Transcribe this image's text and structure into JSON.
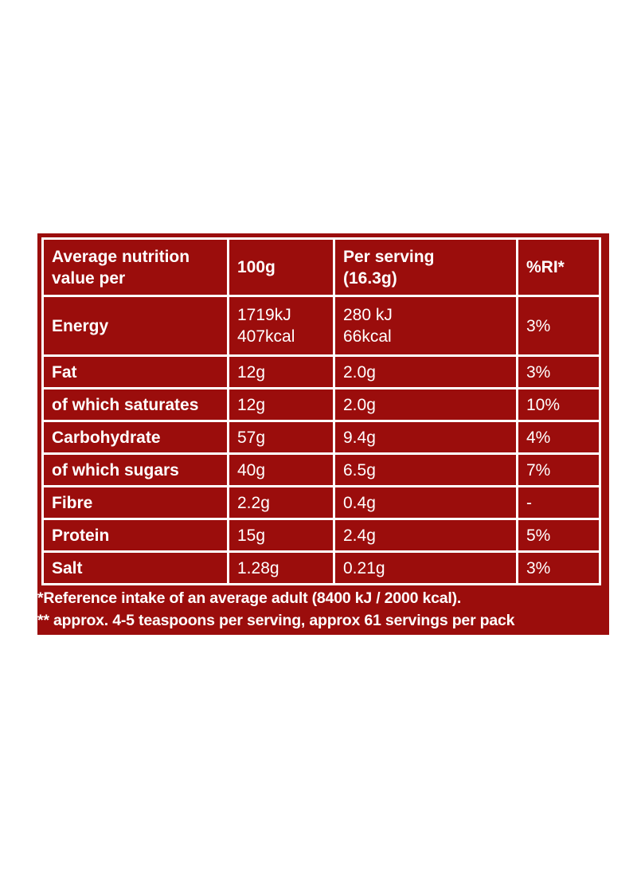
{
  "table": {
    "rows": [
      [
        [
          "Average nutrition",
          "value per"
        ],
        [
          "100g"
        ],
        [
          "Per serving",
          "(16.3g)"
        ],
        [
          "%RI*"
        ]
      ],
      [
        [
          "Energy"
        ],
        [
          "1719kJ",
          "407kcal"
        ],
        [
          "280 kJ",
          "66kcal"
        ],
        [
          "3%"
        ]
      ],
      [
        [
          "Fat"
        ],
        [
          "12g"
        ],
        [
          "2.0g"
        ],
        [
          "3%"
        ]
      ],
      [
        [
          "of which saturates"
        ],
        [
          "12g"
        ],
        [
          "2.0g"
        ],
        [
          "10%"
        ]
      ],
      [
        [
          "Carbohydrate"
        ],
        [
          "57g"
        ],
        [
          "9.4g"
        ],
        [
          "4%"
        ]
      ],
      [
        [
          "of which sugars"
        ],
        [
          "40g"
        ],
        [
          "6.5g"
        ],
        [
          "7%"
        ]
      ],
      [
        [
          "Fibre"
        ],
        [
          "2.2g"
        ],
        [
          "0.4g"
        ],
        [
          "-"
        ]
      ],
      [
        [
          "Protein"
        ],
        [
          "15g"
        ],
        [
          "2.4g"
        ],
        [
          "5%"
        ]
      ],
      [
        [
          "Salt"
        ],
        [
          "1.28g"
        ],
        [
          "0.21g"
        ],
        [
          "3%"
        ]
      ]
    ]
  },
  "footnotes": [
    "*Reference intake of an average adult (8400 kJ / 2000 kcal).",
    "** approx. 4-5 teaspoons per serving, approx 61 servings per pack"
  ]
}
